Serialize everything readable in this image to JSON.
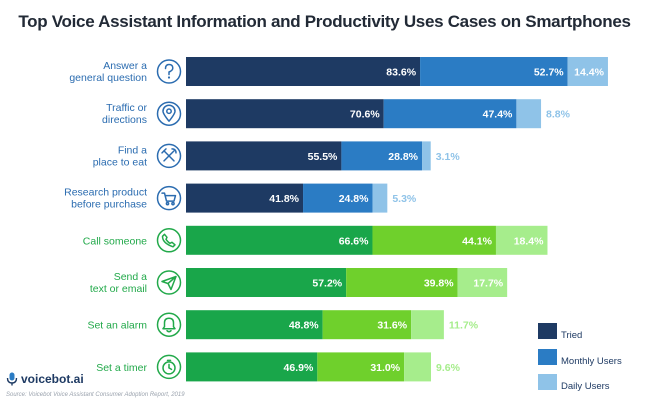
{
  "chart_data": {
    "type": "bar",
    "title": "Top Voice Assistant Information and Productivity Uses Cases on Smartphones",
    "categories": [
      "Answer a general question",
      "Traffic or directions",
      "Find a place to eat",
      "Research product before purchase",
      "Call someone",
      "Send a text or email",
      "Set an alarm",
      "Set a timer"
    ],
    "category_lines": [
      [
        "Answer a",
        "general question"
      ],
      [
        "Traffic or",
        "directions"
      ],
      [
        "Find a",
        "place to eat"
      ],
      [
        "Research product",
        "before purchase"
      ],
      [
        "Call someone"
      ],
      [
        "Send a",
        "text or email"
      ],
      [
        "Set an alarm"
      ],
      [
        "Set a timer"
      ]
    ],
    "icons": [
      "question-icon",
      "location-pin-icon",
      "utensils-icon",
      "shopping-cart-icon",
      "phone-icon",
      "paper-plane-icon",
      "alarm-bell-icon",
      "stopwatch-icon"
    ],
    "groups": [
      "information",
      "information",
      "information",
      "information",
      "productivity",
      "productivity",
      "productivity",
      "productivity"
    ],
    "series": [
      {
        "name": "Tried",
        "values": [
          83.6,
          70.6,
          55.5,
          41.8,
          66.6,
          57.2,
          48.8,
          46.9
        ]
      },
      {
        "name": "Monthly Users",
        "values": [
          52.7,
          47.4,
          28.8,
          24.8,
          44.1,
          39.8,
          31.6,
          31.0
        ]
      },
      {
        "name": "Daily Users",
        "values": [
          14.4,
          8.8,
          3.1,
          5.3,
          18.4,
          17.7,
          11.7,
          9.6
        ]
      }
    ],
    "value_labels": {
      "Tried": [
        "83.6%",
        "70.6%",
        "55.5%",
        "41.8%",
        "66.6%",
        "57.2%",
        "48.8%",
        "46.9%"
      ],
      "Monthly Users": [
        "52.7%",
        "47.4%",
        "28.8%",
        "24.8%",
        "44.1%",
        "39.8%",
        "31.6%",
        "31.0%"
      ],
      "Daily Users": [
        "14.4%",
        "8.8%",
        "3.1%",
        "5.3%",
        "18.4%",
        "17.7%",
        "11.7%",
        "9.6%"
      ]
    },
    "stacking": "stacked",
    "legend_position": "bottom-right",
    "colors": {
      "information": [
        "#1e3a63",
        "#2b7cc4",
        "#8fc3e8"
      ],
      "productivity": [
        "#19a64a",
        "#6fd02c",
        "#a6ed8c"
      ],
      "label_information": "#2b6cb0",
      "label_productivity": "#22a94a",
      "legend": [
        "#1e3a63",
        "#2b7cc4",
        "#8fc3e8"
      ]
    }
  },
  "brand": {
    "name": "voicebot.ai"
  },
  "source": "Source: Voicebot Voice Assistant Consumer Adoption Report, 2019"
}
